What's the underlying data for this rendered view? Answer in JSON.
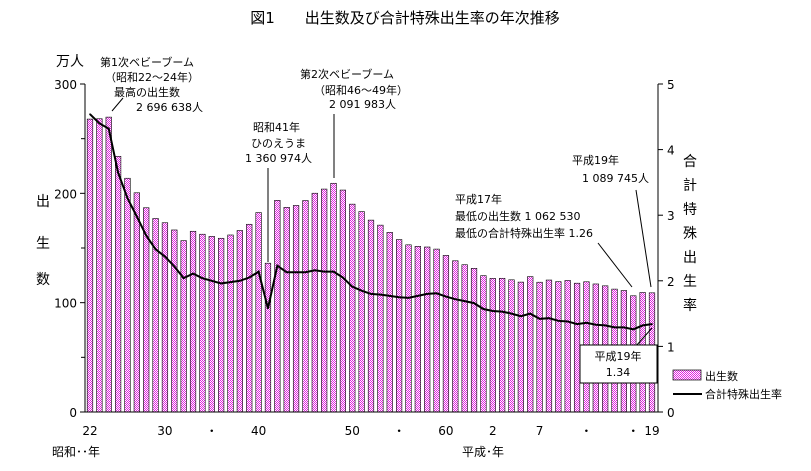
{
  "title": "図1　　出生数及び合計特殊出生率の年次推移",
  "chart_data": {
    "type": "bar",
    "title": "図1　　出生数及び合計特殊出生率の年次推移",
    "x": [
      1947,
      1948,
      1949,
      1950,
      1951,
      1952,
      1953,
      1954,
      1955,
      1956,
      1957,
      1958,
      1959,
      1960,
      1961,
      1962,
      1963,
      1964,
      1965,
      1966,
      1967,
      1968,
      1969,
      1970,
      1971,
      1972,
      1973,
      1974,
      1975,
      1976,
      1977,
      1978,
      1979,
      1980,
      1981,
      1982,
      1983,
      1984,
      1985,
      1986,
      1987,
      1988,
      1989,
      1990,
      1991,
      1992,
      1993,
      1994,
      1995,
      1996,
      1997,
      1998,
      1999,
      2000,
      2001,
      2002,
      2003,
      2004,
      2005,
      2006,
      2007
    ],
    "series": [
      {
        "name": "出生数",
        "type": "bar",
        "axis": "left",
        "unit": "万人",
        "values": [
          267.9,
          268.2,
          269.7,
          233.8,
          213.8,
          200.5,
          186.8,
          177.0,
          173.1,
          166.5,
          156.7,
          165.3,
          162.6,
          160.6,
          158.9,
          161.9,
          166.0,
          171.7,
          182.4,
          136.1,
          193.6,
          187.2,
          188.9,
          193.4,
          200.1,
          203.9,
          209.2,
          203.0,
          190.1,
          183.3,
          175.5,
          170.9,
          164.3,
          157.7,
          152.9,
          151.5,
          150.9,
          149.0,
          143.2,
          138.3,
          134.7,
          131.4,
          124.7,
          122.2,
          122.3,
          120.9,
          118.8,
          123.8,
          118.7,
          120.7,
          119.2,
          120.3,
          117.8,
          119.1,
          117.1,
          115.4,
          112.4,
          111.1,
          106.3,
          109.3,
          109.0
        ]
      },
      {
        "name": "合計特殊出生率",
        "type": "line",
        "axis": "right",
        "values": [
          4.54,
          4.4,
          4.32,
          3.65,
          3.26,
          2.98,
          2.69,
          2.48,
          2.37,
          2.22,
          2.04,
          2.11,
          2.04,
          2.0,
          1.96,
          1.98,
          2.0,
          2.05,
          2.14,
          1.58,
          2.23,
          2.13,
          2.13,
          2.13,
          2.16,
          2.14,
          2.14,
          2.05,
          1.91,
          1.85,
          1.8,
          1.79,
          1.77,
          1.75,
          1.74,
          1.77,
          1.8,
          1.81,
          1.76,
          1.72,
          1.69,
          1.66,
          1.57,
          1.54,
          1.53,
          1.5,
          1.46,
          1.5,
          1.42,
          1.43,
          1.39,
          1.38,
          1.34,
          1.36,
          1.33,
          1.32,
          1.29,
          1.29,
          1.26,
          1.32,
          1.34
        ]
      }
    ],
    "ylim": [
      0,
      300
    ],
    "y2lim": [
      0,
      5
    ],
    "yticks": [
      "0",
      "100",
      "200",
      "300"
    ],
    "y2ticks": [
      "0",
      "1",
      "2",
      "3",
      "4",
      "5"
    ],
    "xticks": [
      {
        "year": 1947,
        "label": "22"
      },
      {
        "year": 1955,
        "label": "30"
      },
      {
        "year": 1960,
        "label": "・"
      },
      {
        "year": 1965,
        "label": "40"
      },
      {
        "year": 1975,
        "label": "50"
      },
      {
        "year": 1980,
        "label": "・"
      },
      {
        "year": 1985,
        "label": "60"
      },
      {
        "year": 1990,
        "label": "2"
      },
      {
        "year": 1995,
        "label": "7"
      },
      {
        "year": 2000,
        "label": "・"
      },
      {
        "year": 2005,
        "label": "・"
      },
      {
        "year": 2007,
        "label": "19"
      }
    ],
    "ylabel_unit": "万人",
    "ylabel": [
      "出",
      "生",
      "数"
    ],
    "y2label": [
      "合",
      "計",
      "特",
      "殊",
      "出",
      "生",
      "率"
    ],
    "xlabel_showa": "昭和･･年",
    "xlabel_heisei": "平成･年",
    "legend": {
      "position": "bottom-right",
      "bar": "出生数",
      "line": "合計特殊出生率"
    },
    "annotations": {
      "boom1": [
        "第1次ベビーブーム",
        "（昭和22～24年）",
        "最高の出生数",
        "2 696 638人"
      ],
      "boom2": [
        "第2次ベビーブーム",
        "（昭和46～49年）",
        "2 091 983人"
      ],
      "hinoe": [
        "昭和41年",
        "ひのえうま",
        "1 360 974人"
      ],
      "low": [
        "平成17年",
        "最低の出生数 1 062 530",
        "最低の合計特殊出生率 1.26"
      ],
      "h19births": [
        "平成19年",
        "1 089 745人"
      ],
      "h19rate": [
        "平成19年",
        "1.34"
      ]
    }
  }
}
